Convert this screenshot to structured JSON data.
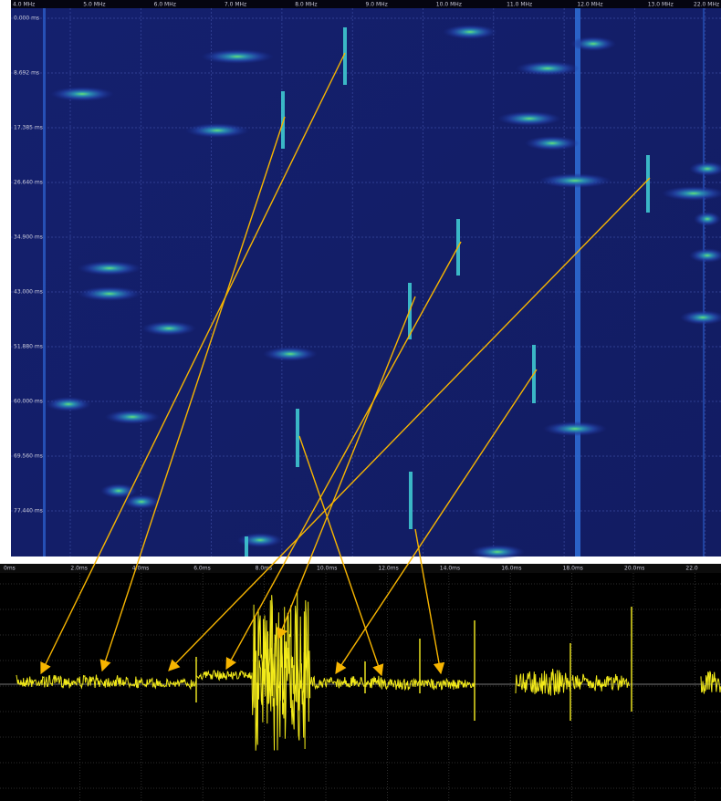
{
  "spectrogram": {
    "freq_labels": [
      "4.0 MHz",
      "5.0 MHz",
      "6.0 MHz",
      "7.0 MHz",
      "8.0 MHz",
      "9.0 MHz",
      "10.0 MHz",
      "11.0 MHz",
      "12.0 MHz",
      "13.0 MHz",
      "22.0 MHz"
    ],
    "time_labels": [
      "0.000 ms",
      "8.692 ms",
      "17.385 ms",
      "26.640 ms",
      "34.900 ms",
      "43.000 ms",
      "51.880 ms",
      "60.000 ms",
      "69.560 ms",
      "77.440 ms"
    ]
  },
  "oscilloscope": {
    "time_labels": [
      "0ms",
      "2.0ms",
      "4.0ms",
      "6.0ms",
      "8.0ms",
      "10.0ms",
      "12.0ms",
      "14.0ms",
      "16.0ms",
      "18.0ms",
      "20.0ms",
      "22.0"
    ]
  }
}
